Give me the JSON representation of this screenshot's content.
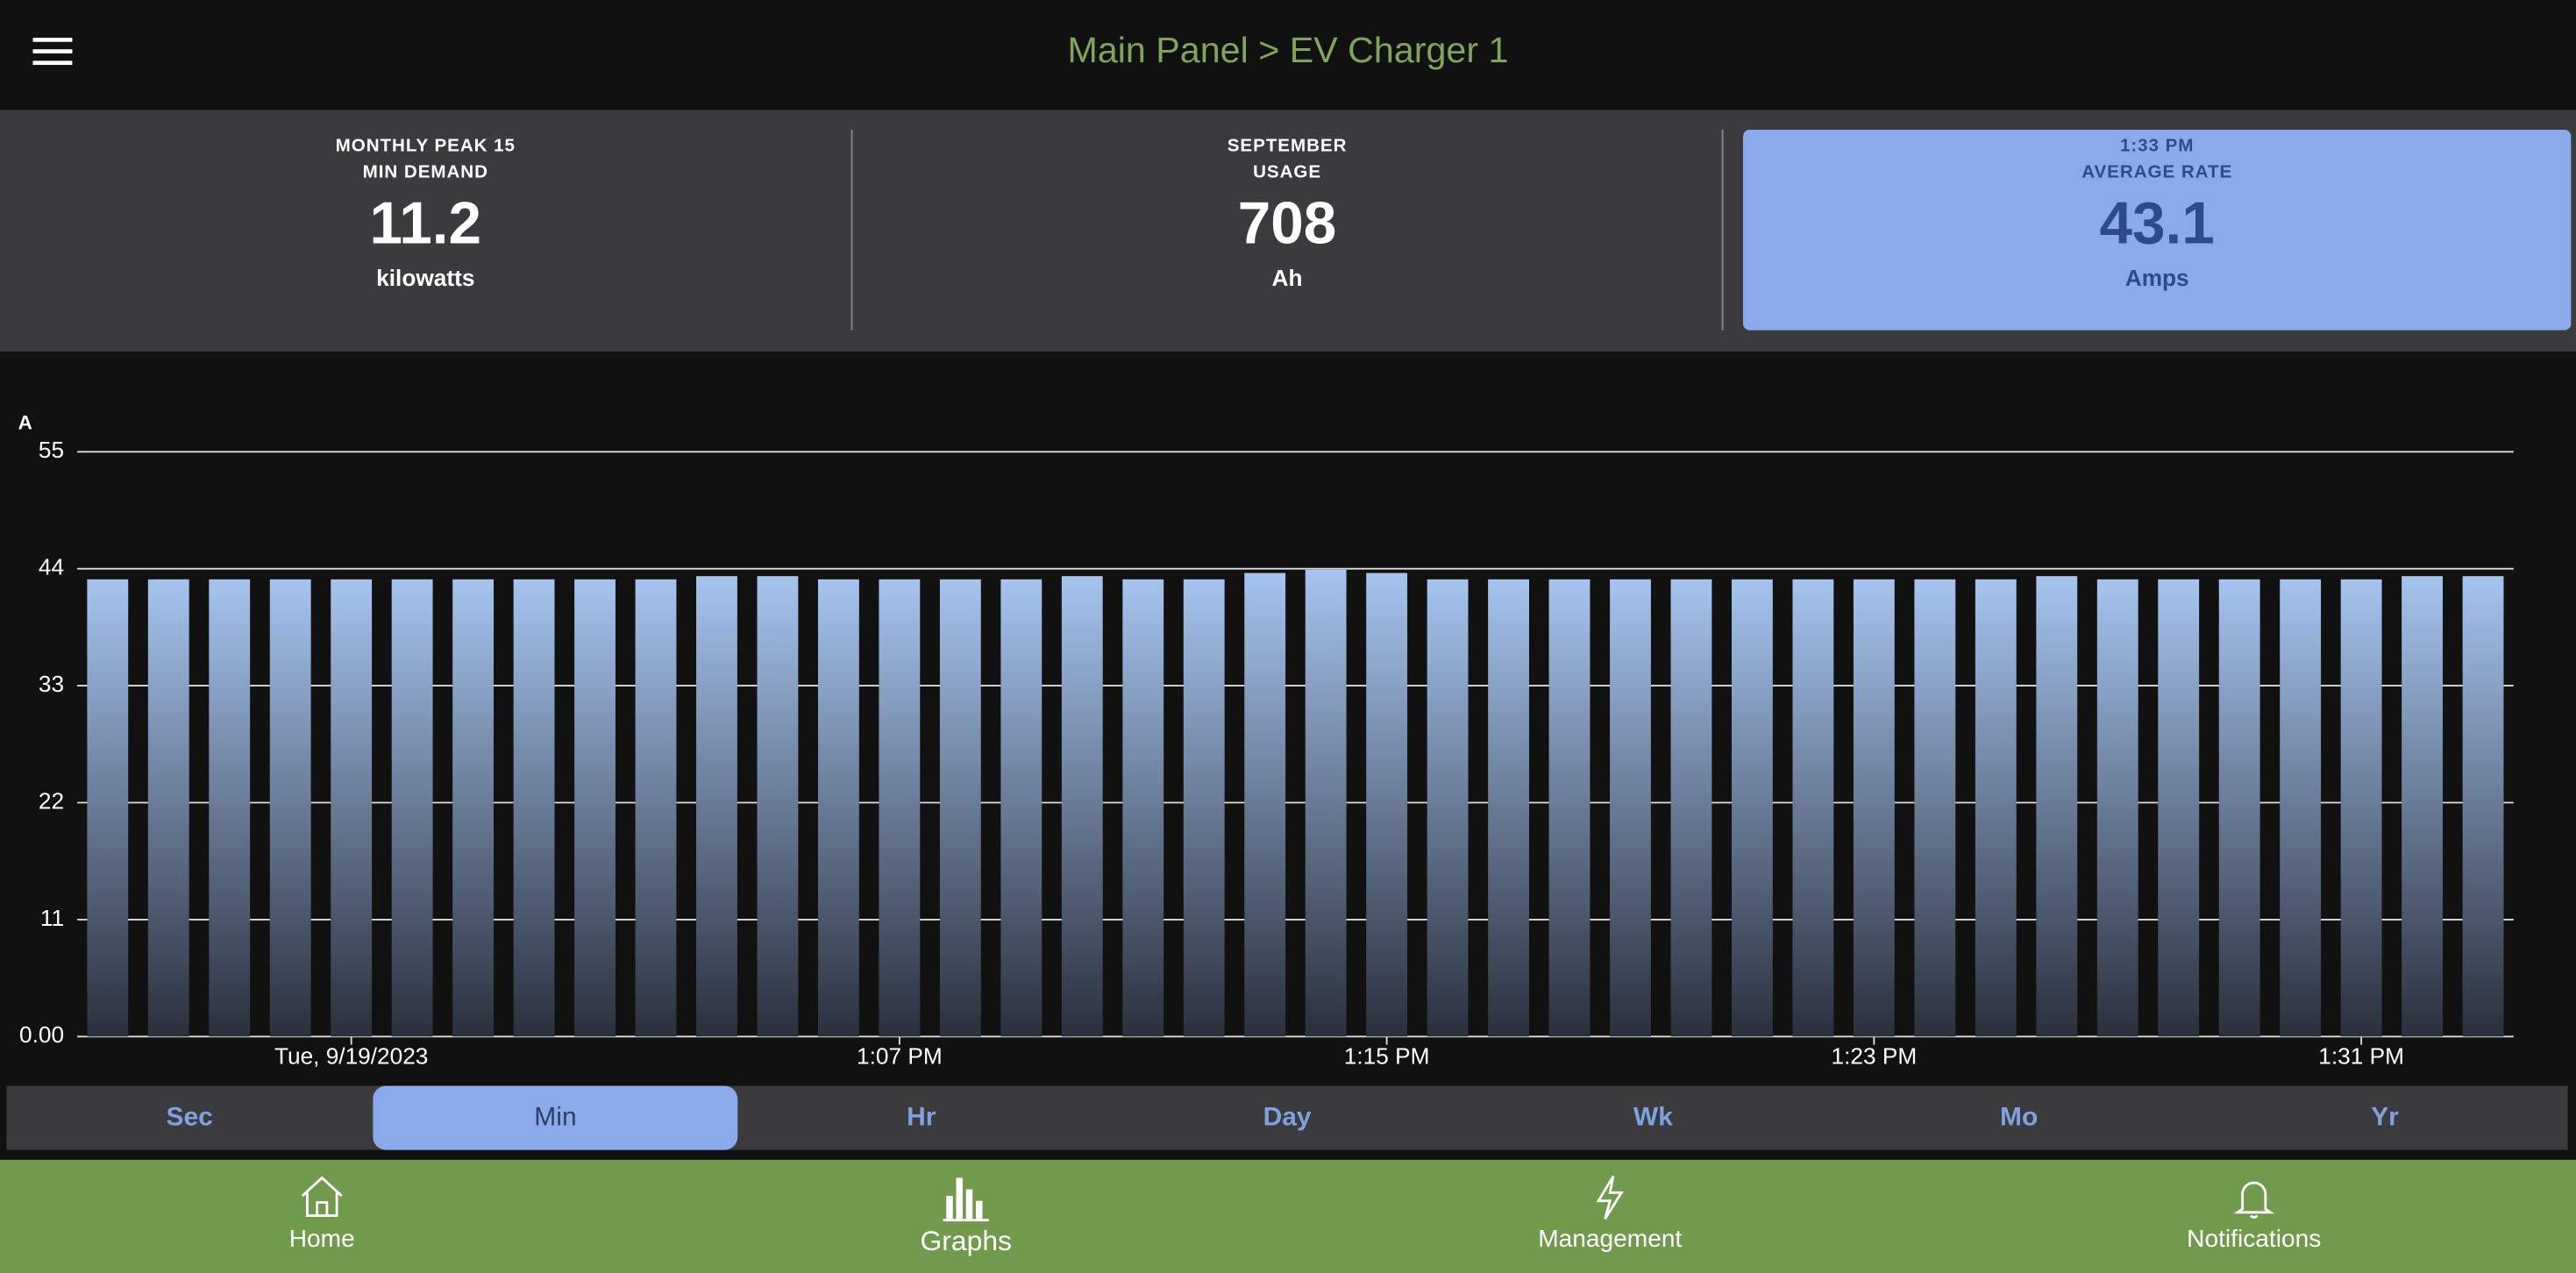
{
  "header": {
    "title": "Main Panel > EV Charger 1"
  },
  "cards": [
    {
      "label_lines": [
        "MONTHLY PEAK 15",
        "MIN DEMAND"
      ],
      "value": 11.2,
      "unit": "kilowatts"
    },
    {
      "label_lines": [
        "SEPTEMBER",
        "USAGE"
      ],
      "value": 708,
      "unit": "Ah"
    },
    {
      "label_lines": [
        "1:33 PM",
        "AVERAGE RATE"
      ],
      "value": 43.1,
      "unit": "Amps"
    }
  ],
  "chart_data": {
    "type": "bar",
    "y_label": "A",
    "categories": [
      null,
      null,
      null,
      null,
      "Tue, 9/19/2023",
      null,
      null,
      null,
      null,
      null,
      null,
      null,
      null,
      "1:07 PM",
      null,
      null,
      null,
      null,
      null,
      null,
      null,
      "1:15 PM",
      null,
      null,
      null,
      null,
      null,
      null,
      null,
      "1:23 PM",
      null,
      null,
      null,
      null,
      null,
      null,
      null,
      "1:31 PM",
      null,
      null
    ],
    "values": [
      43.0,
      43.0,
      43.0,
      43.0,
      43.0,
      43.0,
      43.0,
      43.0,
      43.0,
      43.0,
      43.3,
      43.3,
      43.0,
      43.0,
      43.0,
      43.0,
      43.3,
      43.0,
      43.0,
      43.6,
      43.9,
      43.6,
      43.0,
      43.0,
      43.0,
      43.0,
      43.0,
      43.0,
      43.0,
      43.0,
      43.0,
      43.0,
      43.3,
      43.0,
      43.0,
      43.0,
      43.0,
      43.0,
      43.3,
      43.3
    ],
    "color": "#a6c4ef",
    "ylim": [
      0,
      55
    ],
    "yticks": [
      {
        "value": 0,
        "label": "0.00"
      },
      11,
      22,
      33,
      44,
      55
    ],
    "grid": true
  },
  "ranges": {
    "items": [
      "Sec",
      "Min",
      "Hr",
      "Day",
      "Wk",
      "Mo",
      "Yr"
    ],
    "active": 1
  },
  "nav": [
    "Home",
    "Graphs",
    "Management",
    "Notifications"
  ]
}
